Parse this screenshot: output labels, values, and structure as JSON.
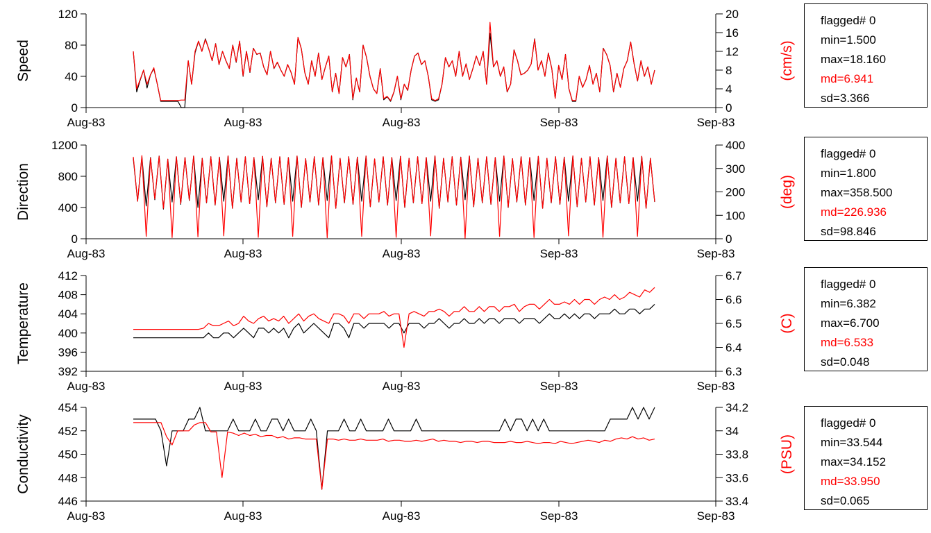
{
  "colors": {
    "series_black": "#000000",
    "series_red": "#ff0000"
  },
  "chart_data": [
    {
      "type": "line",
      "ylabel": "Speed",
      "ylabel_right": "(cm/s)",
      "xtick_labels": [
        "Aug-83",
        "Aug-83",
        "Aug-83",
        "Sep-83",
        "Sep-83"
      ],
      "ylim": [
        0,
        120
      ],
      "yticks": [
        0,
        40,
        80,
        120
      ],
      "ylim_right": [
        0,
        20
      ],
      "yticks_right": [
        0,
        4,
        8,
        12,
        16,
        20
      ],
      "series": [
        {
          "values": [
            72,
            20,
            35,
            48,
            25,
            42,
            50,
            30,
            8,
            8,
            8,
            8,
            8,
            8,
            0,
            0,
            60,
            30,
            70,
            85,
            72,
            88,
            75,
            60,
            82,
            55,
            72,
            60,
            50,
            80,
            58,
            85,
            40,
            72,
            45,
            76,
            68,
            70,
            52,
            42,
            72,
            50,
            58,
            48,
            40,
            55,
            45,
            30,
            90,
            75,
            45,
            30,
            60,
            40,
            70,
            36,
            52,
            66,
            20,
            44,
            18,
            64,
            52,
            68,
            10,
            38,
            20,
            80,
            64,
            40,
            24,
            18,
            50,
            10,
            14,
            8,
            20,
            40,
            10,
            30,
            22,
            48,
            66,
            70,
            55,
            60,
            40,
            10,
            8,
            10,
            30,
            64,
            52,
            60,
            40,
            72,
            40,
            56,
            36,
            50,
            66,
            54,
            72,
            30,
            95,
            52,
            60,
            40,
            52,
            20,
            30,
            74,
            60,
            42,
            44,
            48,
            56,
            88,
            48,
            60,
            40,
            70,
            50,
            12,
            54,
            36,
            68,
            24,
            8,
            8,
            40,
            26,
            36,
            54,
            30,
            44,
            20,
            76,
            68,
            54,
            20,
            44,
            26,
            50,
            60,
            84,
            56,
            34,
            60,
            40,
            52,
            30,
            48
          ]
        },
        {
          "values": [
            12,
            4,
            6,
            8,
            5,
            7,
            8.5,
            5,
            1.5,
            1.5,
            1.5,
            1.5,
            1.5,
            1.5,
            1.6,
            1.6,
            10,
            5,
            12,
            14.2,
            12,
            14.5,
            12.5,
            10,
            13.6,
            9.2,
            12,
            10,
            8.4,
            13.3,
            9.8,
            14.2,
            6.8,
            12,
            7.6,
            12.6,
            11.4,
            11.6,
            8.7,
            7,
            12,
            8.4,
            9.7,
            8,
            6.7,
            9.2,
            7.5,
            5,
            15,
            12.5,
            7.5,
            5,
            10,
            6.7,
            11.6,
            6,
            8.7,
            11,
            3.4,
            7.3,
            3,
            10.7,
            8.7,
            11.3,
            1.9,
            6.3,
            3.4,
            13.3,
            10.7,
            6.7,
            4,
            3,
            8.3,
            1.9,
            2.4,
            1.5,
            3.4,
            6.7,
            1.9,
            5,
            3.7,
            8,
            11,
            11.6,
            9.2,
            10,
            6.7,
            1.9,
            1.5,
            1.9,
            5,
            10.7,
            8.7,
            10,
            6.7,
            12,
            6.7,
            9.3,
            6,
            8.3,
            11,
            9,
            12,
            5,
            18.2,
            8.7,
            10,
            6.7,
            8.7,
            3.4,
            5,
            12.3,
            10,
            7,
            7.3,
            8,
            9.3,
            14.6,
            8,
            10,
            6.7,
            11.6,
            8.3,
            2,
            9,
            6,
            11.3,
            4,
            1.5,
            1.5,
            6.7,
            4.3,
            6,
            9,
            5,
            7.3,
            3.4,
            12.6,
            11.3,
            9,
            3.4,
            7.3,
            4.3,
            8.3,
            10,
            14,
            9.3,
            5.7,
            10,
            6.7,
            8.7,
            5,
            8
          ]
        }
      ],
      "stats": {
        "flagged": "flagged# 0",
        "min": "min=1.500",
        "max": "max=18.160",
        "md": "md=6.941",
        "sd": "sd=3.366"
      }
    },
    {
      "type": "line",
      "ylabel": "Direction",
      "ylabel_right": "(deg)",
      "xtick_labels": [
        "Aug-83",
        "Aug-83",
        "Aug-83",
        "Sep-83",
        "Sep-83"
      ],
      "ylim": [
        0,
        1200
      ],
      "yticks": [
        0,
        400,
        800,
        1200
      ],
      "ylim_right": [
        0,
        400
      ],
      "yticks_right": [
        0,
        100,
        200,
        300,
        400
      ],
      "series": [
        {
          "values": [
            1030,
            480,
            1050,
            420,
            1040,
            500,
            1060,
            380,
            1020,
            470,
            1050,
            440,
            1040,
            490,
            1060,
            400,
            1030,
            460,
            1050,
            430,
            1045,
            480,
            1060,
            390,
            1030,
            470,
            1050,
            450,
            1040,
            500,
            1055,
            410,
            1030,
            460,
            1050,
            440,
            1040,
            480,
            1060,
            400,
            1025,
            470,
            1050,
            430,
            1040,
            490,
            1060,
            390,
            1030,
            460,
            1050,
            440,
            1045,
            480,
            1060,
            410,
            1020,
            470,
            1050,
            430,
            1040,
            490,
            1055,
            400,
            1030,
            460,
            1050,
            450,
            1040,
            480,
            1060,
            390,
            1030,
            470,
            1050,
            430,
            1045,
            500,
            1060,
            410,
            1030,
            460,
            1050,
            440,
            1040,
            480,
            1060,
            400,
            1025,
            470,
            1050,
            430,
            1040,
            490,
            1055,
            390,
            1030,
            460,
            1050,
            440,
            1045,
            480,
            1060,
            410,
            1030,
            470,
            1050,
            430,
            1040,
            490,
            1060,
            400,
            1030,
            460,
            1050,
            450,
            1040,
            480,
            1055,
            390,
            1030,
            470
          ]
        },
        {
          "values": [
            350,
            160,
            355,
            10,
            345,
            170,
            352,
            130,
            340,
            5,
            350,
            150,
            347,
            165,
            353,
            8,
            343,
            155,
            350,
            145,
            348,
            12,
            354,
            130,
            342,
            158,
            350,
            150,
            347,
            6,
            352,
            138,
            343,
            155,
            350,
            148,
            346,
            10,
            353,
            135,
            342,
            158,
            350,
            145,
            347,
            4,
            354,
            130,
            343,
            155,
            350,
            148,
            348,
            10,
            353,
            138,
            341,
            158,
            350,
            145,
            347,
            6,
            352,
            135,
            343,
            155,
            350,
            150,
            347,
            12,
            354,
            130,
            343,
            158,
            350,
            145,
            348,
            2,
            353,
            138,
            343,
            155,
            350,
            148,
            347,
            10,
            353,
            135,
            342,
            158,
            350,
            145,
            347,
            5,
            352,
            130,
            343,
            155,
            350,
            148,
            348,
            12,
            354,
            138,
            343,
            158,
            350,
            145,
            347,
            6,
            353,
            135,
            343,
            155,
            350,
            150,
            347,
            10,
            352,
            130,
            343,
            158
          ]
        }
      ],
      "stats": {
        "flagged": "flagged# 0",
        "min": "min=1.800",
        "max": "max=358.500",
        "md": "md=226.936",
        "sd": "sd=98.846"
      }
    },
    {
      "type": "line",
      "ylabel": "Temperature",
      "ylabel_right": "(C)",
      "xtick_labels": [
        "Aug-83",
        "Aug-83",
        "Aug-83",
        "Sep-83",
        "Sep-83"
      ],
      "ylim": [
        392,
        412
      ],
      "yticks": [
        392,
        396,
        400,
        404,
        408,
        412
      ],
      "ylim_right": [
        6.3,
        6.7
      ],
      "yticks_right": [
        6.3,
        6.4,
        6.5,
        6.6,
        6.7
      ],
      "series": [
        {
          "values": [
            399,
            399,
            399,
            399,
            399,
            399,
            399,
            399,
            399,
            399,
            399,
            399,
            399,
            399,
            399,
            400,
            399,
            399,
            400,
            400,
            399,
            400,
            401,
            400,
            399,
            401,
            401,
            400,
            401,
            400,
            401,
            399,
            401,
            402,
            400,
            401,
            402,
            401,
            400,
            399,
            402,
            402,
            401,
            399,
            402,
            402,
            401,
            402,
            402,
            402,
            402,
            401,
            402,
            402,
            400,
            402,
            402,
            402,
            401,
            402,
            402,
            403,
            402,
            401,
            402,
            402,
            403,
            402,
            402,
            403,
            402,
            403,
            403,
            402,
            403,
            403,
            403,
            402,
            403,
            403,
            403,
            402,
            403,
            404,
            403,
            403,
            404,
            403,
            404,
            403,
            404,
            404,
            403,
            404,
            404,
            404,
            405,
            404,
            404,
            405,
            405,
            404,
            405,
            405,
            406
          ]
        },
        {
          "values": [
            6.475,
            6.475,
            6.475,
            6.475,
            6.475,
            6.475,
            6.475,
            6.475,
            6.475,
            6.475,
            6.475,
            6.475,
            6.475,
            6.475,
            6.48,
            6.5,
            6.49,
            6.49,
            6.5,
            6.51,
            6.49,
            6.5,
            6.53,
            6.51,
            6.5,
            6.52,
            6.53,
            6.51,
            6.52,
            6.51,
            6.53,
            6.5,
            6.52,
            6.54,
            6.51,
            6.53,
            6.54,
            6.52,
            6.51,
            6.5,
            6.54,
            6.54,
            6.53,
            6.5,
            6.54,
            6.54,
            6.52,
            6.54,
            6.54,
            6.54,
            6.55,
            6.53,
            6.54,
            6.54,
            6.4,
            6.54,
            6.55,
            6.54,
            6.53,
            6.55,
            6.55,
            6.56,
            6.55,
            6.53,
            6.55,
            6.55,
            6.57,
            6.55,
            6.55,
            6.57,
            6.55,
            6.57,
            6.57,
            6.55,
            6.57,
            6.57,
            6.58,
            6.55,
            6.57,
            6.58,
            6.58,
            6.56,
            6.58,
            6.6,
            6.58,
            6.58,
            6.59,
            6.58,
            6.6,
            6.58,
            6.6,
            6.6,
            6.58,
            6.6,
            6.61,
            6.6,
            6.62,
            6.6,
            6.61,
            6.63,
            6.62,
            6.61,
            6.64,
            6.63,
            6.65
          ]
        }
      ],
      "stats": {
        "flagged": "flagged# 0",
        "min": "min=6.382",
        "max": "max=6.700",
        "md": "md=6.533",
        "sd": "sd=0.048"
      }
    },
    {
      "type": "line",
      "ylabel": "Conductivity",
      "ylabel_right": "(PSU)",
      "xtick_labels": [
        "Aug-83",
        "Aug-83",
        "Aug-83",
        "Sep-83",
        "Sep-83"
      ],
      "ylim": [
        446,
        454
      ],
      "yticks": [
        446,
        448,
        450,
        452,
        454
      ],
      "ylim_right": [
        33.4,
        34.2
      ],
      "yticks_right": [
        33.4,
        33.6,
        33.8,
        34,
        34.2
      ],
      "series": [
        {
          "values": [
            453,
            453,
            453,
            453,
            453,
            452,
            449,
            452,
            452,
            452,
            453,
            453,
            454,
            452,
            452,
            452,
            452,
            452,
            453,
            452,
            452,
            452,
            453,
            452,
            452,
            453,
            453,
            452,
            453,
            452,
            452,
            452,
            453,
            452,
            447,
            452,
            452,
            452,
            453,
            452,
            452,
            453,
            452,
            452,
            452,
            452,
            453,
            452,
            452,
            452,
            452,
            453,
            452,
            452,
            452,
            452,
            452,
            452,
            452,
            452,
            452,
            452,
            452,
            452,
            452,
            452,
            452,
            453,
            452,
            453,
            453,
            452,
            453,
            452,
            453,
            452,
            452,
            452,
            452,
            452,
            452,
            452,
            452,
            452,
            452,
            452,
            453,
            453,
            453,
            453,
            454,
            453,
            454,
            453,
            454
          ]
        },
        {
          "values": [
            34.07,
            34.07,
            34.07,
            34.07,
            34.07,
            34.07,
            33.95,
            33.88,
            34.0,
            34.0,
            34.0,
            34.05,
            34.07,
            34.07,
            33.99,
            33.99,
            33.6,
            33.99,
            33.98,
            33.96,
            33.98,
            33.96,
            33.97,
            33.95,
            33.96,
            33.96,
            33.94,
            33.95,
            33.93,
            33.94,
            33.94,
            33.93,
            33.93,
            33.93,
            33.5,
            33.93,
            33.93,
            33.92,
            33.93,
            33.92,
            33.92,
            33.93,
            33.92,
            33.92,
            33.92,
            33.93,
            33.91,
            33.92,
            33.92,
            33.91,
            33.91,
            33.92,
            33.91,
            33.92,
            33.93,
            33.91,
            33.92,
            33.91,
            33.91,
            33.9,
            33.91,
            33.91,
            33.9,
            33.91,
            33.91,
            33.9,
            33.9,
            33.9,
            33.91,
            33.9,
            33.9,
            33.91,
            33.9,
            33.89,
            33.9,
            33.9,
            33.89,
            33.91,
            33.9,
            33.89,
            33.9,
            33.91,
            33.92,
            33.91,
            33.9,
            33.92,
            33.91,
            33.93,
            33.94,
            33.93,
            33.95,
            33.93,
            33.94,
            33.92,
            33.93
          ]
        }
      ],
      "stats": {
        "flagged": "flagged# 0",
        "min": "min=33.544",
        "max": "max=34.152",
        "md": "md=33.950",
        "sd": "sd=0.065"
      }
    }
  ]
}
